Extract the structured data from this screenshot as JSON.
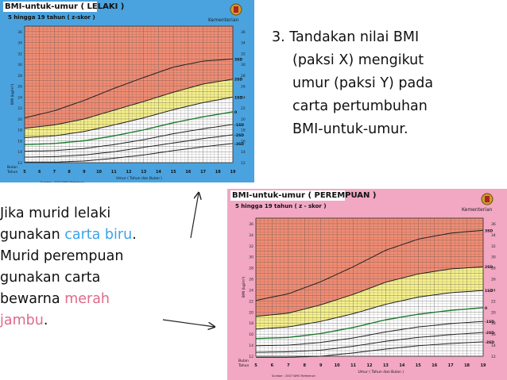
{
  "instruction": {
    "lines": [
      "3. Tandakan nilai BMI",
      "(paksi X) mengikut",
      "umur (paksi Y) pada",
      "carta pertumbuhan",
      "BMI-untuk-umur."
    ]
  },
  "note": {
    "line1": "Jika murid lelaki",
    "line2_prefix": "gunakan ",
    "line2_highlight": "carta biru",
    "line2_suffix": ".",
    "line3": "Murid perempuan",
    "line4": "gunakan carta",
    "line5_prefix": "bewarna ",
    "line5_highlight": "merah",
    "line6_highlight": "jambu",
    "line6_suffix": "."
  },
  "colors": {
    "blue_highlight": "#3aa3e6",
    "pink_highlight": "#e06a8a",
    "boys_bg": "#4aa3df",
    "girls_bg": "#f2a7c3"
  },
  "chart_data": [
    {
      "type": "line",
      "title": "BMI-untuk-umur ( LELAKI )",
      "subtitle": "5 hingga 19 tahun ( z-skor )",
      "ylabel": "BMI (kg/m²)",
      "xlabel": "Umur ( Tahun dan Bulan )",
      "x_row_label": [
        "Bulan",
        "Tahun"
      ],
      "emblem_caption": [
        "Kementerian",
        "Kesihatan Malaysia"
      ],
      "footer": "Sumber : 2007 WHO Reference",
      "x_ticks": [
        5,
        6,
        7,
        8,
        9,
        10,
        11,
        12,
        13,
        14,
        15,
        16,
        17,
        18,
        19
      ],
      "y_ticks": [
        12,
        14,
        16,
        18,
        20,
        22,
        24,
        26,
        28,
        30,
        32,
        34,
        36
      ],
      "ylim": [
        12,
        37
      ],
      "xlim": [
        5,
        19
      ],
      "series": [
        {
          "name": "-3SD",
          "x": [
            5,
            7,
            9,
            11,
            13,
            15,
            17,
            19
          ],
          "values": [
            12.1,
            12.1,
            12.3,
            12.8,
            13.4,
            14.2,
            14.9,
            15.5
          ]
        },
        {
          "name": "-2SD",
          "x": [
            5,
            7,
            9,
            11,
            13,
            15,
            17,
            19
          ],
          "values": [
            13.0,
            13.1,
            13.4,
            14.0,
            14.8,
            15.6,
            16.4,
            17.1
          ]
        },
        {
          "name": "-1SD",
          "x": [
            5,
            7,
            9,
            11,
            13,
            15,
            17,
            19
          ],
          "values": [
            14.1,
            14.2,
            14.6,
            15.3,
            16.2,
            17.3,
            18.2,
            19.0
          ]
        },
        {
          "name": "0",
          "x": [
            5,
            7,
            9,
            11,
            13,
            15,
            17,
            19
          ],
          "values": [
            15.3,
            15.5,
            16.0,
            16.9,
            18.0,
            19.3,
            20.4,
            21.3
          ]
        },
        {
          "name": "1SD",
          "x": [
            5,
            7,
            9,
            11,
            13,
            15,
            17,
            19
          ],
          "values": [
            16.6,
            16.9,
            17.7,
            18.9,
            20.2,
            21.7,
            23.0,
            24.0
          ]
        },
        {
          "name": "2SD",
          "x": [
            5,
            7,
            9,
            11,
            13,
            15,
            17,
            19
          ],
          "values": [
            18.3,
            18.9,
            20.0,
            21.6,
            23.2,
            24.9,
            26.4,
            27.3
          ]
        },
        {
          "name": "3SD",
          "x": [
            5,
            7,
            9,
            11,
            13,
            15,
            17,
            19
          ],
          "values": [
            20.2,
            21.5,
            23.4,
            25.6,
            27.6,
            29.5,
            30.6,
            31.0
          ]
        }
      ]
    },
    {
      "type": "line",
      "title": "BMI-untuk-umur ( PEREMPUAN )",
      "subtitle": "5 hingga 19 tahun ( z - skor )",
      "ylabel": "BMI (kg/m²)",
      "xlabel": "Umur ( Tahun dan Bulan )",
      "x_row_label": [
        "Bulan",
        "Tahun"
      ],
      "emblem_caption": [
        "Kementerian",
        "Kesihatan Malaysia"
      ],
      "footer": "Sumber : 2007 WHO Reference",
      "x_ticks": [
        5,
        6,
        7,
        8,
        9,
        10,
        11,
        12,
        13,
        14,
        15,
        16,
        17,
        18,
        19
      ],
      "y_ticks": [
        12,
        14,
        16,
        18,
        20,
        22,
        24,
        26,
        28,
        30,
        32,
        34,
        36
      ],
      "ylim": [
        12,
        37
      ],
      "xlim": [
        5,
        19
      ],
      "series": [
        {
          "name": "-3SD",
          "x": [
            5,
            7,
            9,
            11,
            13,
            15,
            17,
            19
          ],
          "values": [
            11.8,
            11.8,
            12.0,
            12.6,
            13.3,
            13.9,
            14.3,
            14.6
          ]
        },
        {
          "name": "-2SD",
          "x": [
            5,
            7,
            9,
            11,
            13,
            15,
            17,
            19
          ],
          "values": [
            12.7,
            12.8,
            13.1,
            13.8,
            14.7,
            15.4,
            15.9,
            16.3
          ]
        },
        {
          "name": "-1SD",
          "x": [
            5,
            7,
            9,
            11,
            13,
            15,
            17,
            19
          ],
          "values": [
            13.9,
            14.0,
            14.5,
            15.3,
            16.4,
            17.3,
            17.9,
            18.3
          ]
        },
        {
          "name": "0",
          "x": [
            5,
            7,
            9,
            11,
            13,
            15,
            17,
            19
          ],
          "values": [
            15.2,
            15.4,
            16.1,
            17.2,
            18.6,
            19.6,
            20.3,
            20.8
          ]
        },
        {
          "name": "1SD",
          "x": [
            5,
            7,
            9,
            11,
            13,
            15,
            17,
            19
          ],
          "values": [
            16.9,
            17.3,
            18.3,
            19.7,
            21.4,
            22.7,
            23.5,
            23.9
          ]
        },
        {
          "name": "2SD",
          "x": [
            5,
            7,
            9,
            11,
            13,
            15,
            17,
            19
          ],
          "values": [
            19.2,
            19.8,
            21.3,
            23.2,
            25.4,
            26.9,
            27.8,
            28.2
          ]
        },
        {
          "name": "3SD",
          "x": [
            5,
            7,
            9,
            11,
            13,
            15,
            17,
            19
          ],
          "values": [
            22.1,
            23.3,
            25.5,
            28.2,
            31.2,
            33.2,
            34.3,
            34.8
          ]
        }
      ]
    }
  ]
}
